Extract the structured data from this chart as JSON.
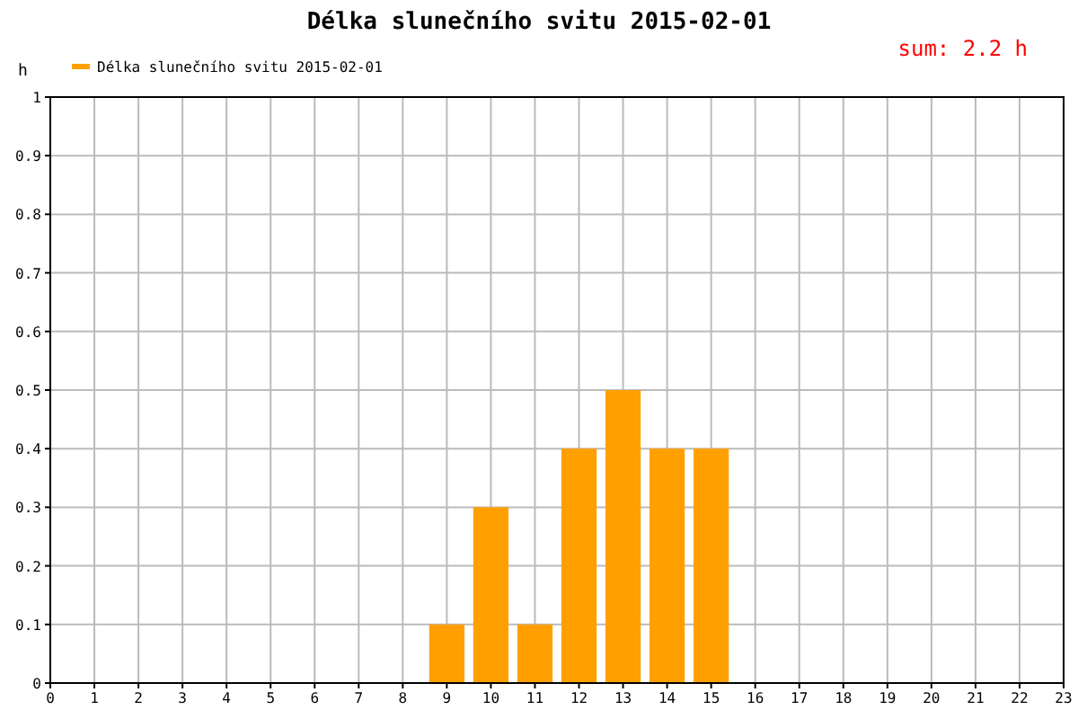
{
  "chart_data": {
    "type": "bar",
    "title": "Délka slunečního svitu 2015-02-01",
    "ylabel": "h",
    "annotations": [
      "sum: 2.2 h"
    ],
    "x": [
      9,
      10,
      11,
      12,
      13,
      14,
      15
    ],
    "series": [
      {
        "name": "Délka slunečního svitu 2015-02-01",
        "color": "#ffa000",
        "values": [
          0.1,
          0.3,
          0.1,
          0.4,
          0.5,
          0.4,
          0.4
        ]
      }
    ],
    "xlim": [
      0,
      23
    ],
    "xticks": [
      0,
      1,
      2,
      3,
      4,
      5,
      6,
      7,
      8,
      9,
      10,
      11,
      12,
      13,
      14,
      15,
      16,
      17,
      18,
      19,
      20,
      21,
      22,
      23
    ],
    "ylim": [
      0,
      1
    ],
    "yticks": [
      0,
      0.1,
      0.2,
      0.3,
      0.4,
      0.5,
      0.6,
      0.7,
      0.8,
      0.9,
      1
    ],
    "grid": true,
    "legend": "top left"
  }
}
